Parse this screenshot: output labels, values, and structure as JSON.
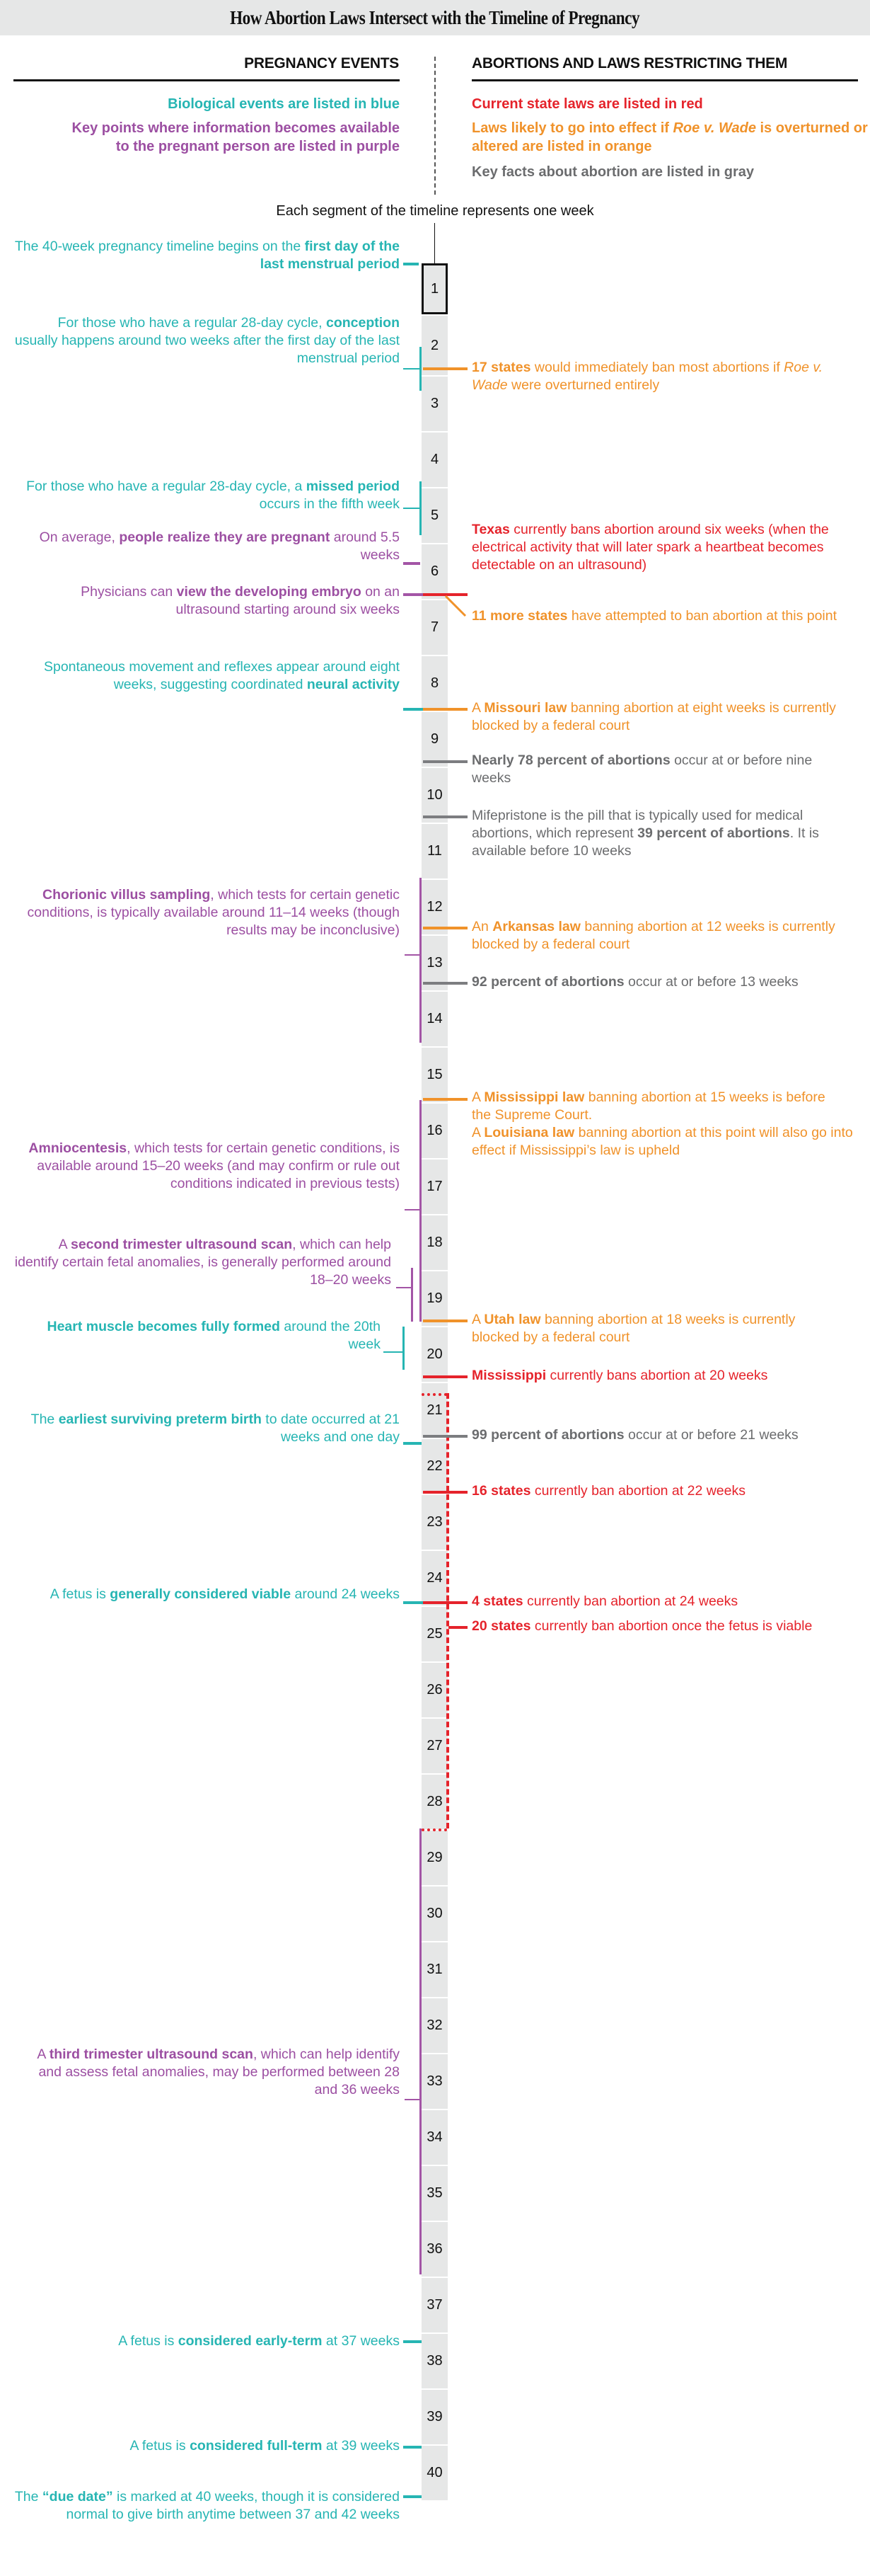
{
  "title": "How Abortion Laws Intersect with the Timeline of Pregnancy",
  "columns": {
    "left_heading": "PREGNANCY EVENTS",
    "right_heading": "ABORTIONS AND LAWS RESTRICTING THEM"
  },
  "legend": {
    "blue": "Biological events are listed in blue",
    "purple": "Key points where information becomes available to the pregnant person are listed in purple",
    "red": "Current state laws are listed in red",
    "orange_pre": "Laws likely to go into effect if ",
    "orange_em": "Roe v. Wade",
    "orange_post": " is overturned or altered are listed in orange",
    "gray": "Key facts about abortion are listed in gray"
  },
  "subtitle": "Each segment of the timeline represents one week",
  "colors": {
    "blue": "#26b5b3",
    "purple": "#9c4fa2",
    "red": "#e5232b",
    "orange": "#f0922a",
    "gray": "#6b6c6e",
    "timeline": "#e6e7e7"
  },
  "weeks": [
    "1",
    "2",
    "3",
    "4",
    "5",
    "6",
    "7",
    "8",
    "9",
    "10",
    "11",
    "12",
    "13",
    "14",
    "15",
    "16",
    "17",
    "18",
    "19",
    "20",
    "21",
    "22",
    "23",
    "24",
    "25",
    "26",
    "27",
    "28",
    "29",
    "30",
    "31",
    "32",
    "33",
    "34",
    "35",
    "36",
    "37",
    "38",
    "39",
    "40"
  ],
  "pregnancy_events": [
    {
      "category": "blue",
      "pre": "The 40-week pregnancy timeline begins on the ",
      "bold": "first day of the last menstrual period",
      "post": ""
    },
    {
      "category": "blue",
      "pre": "For those who have a regular 28-day cycle, ",
      "bold": "conception",
      "post": " usually happens around two weeks after the first day of the last menstrual period"
    },
    {
      "category": "blue",
      "pre": "For those who have a regular 28-day cycle, a ",
      "bold": "missed period",
      "post": " occurs in the fifth week"
    },
    {
      "category": "purple",
      "pre": "On average, ",
      "bold": "people realize they are pregnant",
      "post": " around 5.5 weeks"
    },
    {
      "category": "purple",
      "pre": "Physicians can ",
      "bold": "view the developing embryo",
      "post": " on an ultrasound starting around six weeks"
    },
    {
      "category": "blue",
      "pre": "Spontaneous movement and reflexes appear around eight weeks, suggesting coordinated ",
      "bold": "neural activity",
      "post": ""
    },
    {
      "category": "purple",
      "pre": "",
      "bold": "Chorionic villus sampling",
      "post": ", which tests for certain genetic conditions, is typically available around 11–14 weeks (though results may be inconclusive)"
    },
    {
      "category": "purple",
      "pre": "",
      "bold": "Amniocentesis",
      "post": ", which tests for certain genetic conditions, is available around 15–20 weeks (and may confirm or rule out conditions indicated in previous tests)"
    },
    {
      "category": "purple",
      "pre": "A ",
      "bold": "second trimester ultrasound scan",
      "post": ", which can help identify certain fetal anomalies, is generally performed around 18–20 weeks"
    },
    {
      "category": "blue",
      "pre": "",
      "bold": "Heart muscle becomes fully formed",
      "post": " around the 20th week"
    },
    {
      "category": "blue",
      "pre": "The ",
      "bold": "earliest surviving preterm birth",
      "post": " to date occurred at 21 weeks and one day"
    },
    {
      "category": "blue",
      "pre": "A fetus is ",
      "bold": "generally considered viable",
      "post": " around 24 weeks"
    },
    {
      "category": "purple",
      "pre": "A ",
      "bold": "third trimester ultrasound scan",
      "post": ", which can help identify and assess fetal anomalies, may be performed between 28 and 36 weeks"
    },
    {
      "category": "blue",
      "pre": "A fetus is ",
      "bold": "considered early-term",
      "post": " at 37 weeks"
    },
    {
      "category": "blue",
      "pre": "A fetus is ",
      "bold": "considered full-term",
      "post": " at 39 weeks"
    },
    {
      "category": "blue",
      "pre": "The ",
      "bold": "“due date”",
      "post": " is marked at 40 weeks, though it is considered normal to give birth anytime between 37 and 42 weeks"
    }
  ],
  "abortion_laws": [
    {
      "category": "orange",
      "pre": "",
      "bold": "17 states",
      "post": " would immediately ban most abortions if ",
      "em": "Roe v. Wade",
      "post2": " were overturned entirely"
    },
    {
      "category": "red",
      "pre": "",
      "bold": "Texas",
      "post": " currently bans abortion around six weeks (when the electrical activity that will later spark a heartbeat becomes detectable on an ultrasound)"
    },
    {
      "category": "orange",
      "pre": "",
      "bold": "11 more states",
      "post": " have attempted to ban abortion at this point"
    },
    {
      "category": "orange",
      "pre": "A ",
      "bold": "Missouri law",
      "post": " banning abortion at eight weeks is currently blocked by a federal court"
    },
    {
      "category": "gray",
      "pre": "",
      "bold": "Nearly 78 percent of abortions",
      "post": " occur at or before nine weeks"
    },
    {
      "category": "gray",
      "pre": "Mifepristone is the pill that is typically used for medical abortions, which represent ",
      "bold": "39 percent of abortions",
      "post": ". It is available before 10 weeks"
    },
    {
      "category": "orange",
      "pre": "An ",
      "bold": "Arkansas law",
      "post": " banning abortion at 12 weeks is currently blocked by a federal court"
    },
    {
      "category": "gray",
      "pre": "",
      "bold": "92 percent of abortions",
      "post": " occur at or before 13 weeks"
    },
    {
      "category": "orange",
      "pre": "A ",
      "bold": "Mississippi law",
      "post": " banning abortion at 15 weeks is before the Supreme Court."
    },
    {
      "category": "orange",
      "pre": "A ",
      "bold": "Louisiana law",
      "post": " banning abortion at this point will also go into effect if Mississippi’s law is upheld"
    },
    {
      "category": "orange",
      "pre": "A ",
      "bold": "Utah law",
      "post": " banning abortion at 18 weeks is currently blocked by a federal court"
    },
    {
      "category": "red",
      "pre": "",
      "bold": "Mississippi",
      "post": " currently bans abortion at 20 weeks"
    },
    {
      "category": "gray",
      "pre": "",
      "bold": "99 percent of abortions",
      "post": " occur at or before 21 weeks"
    },
    {
      "category": "red",
      "pre": "",
      "bold": "16 states",
      "post": " currently ban abortion at 22 weeks"
    },
    {
      "category": "red",
      "pre": "",
      "bold": "4 states",
      "post": " currently ban abortion at 24 weeks"
    },
    {
      "category": "red",
      "pre": "",
      "bold": "20 states",
      "post": " currently ban abortion once the fetus is viable"
    }
  ]
}
